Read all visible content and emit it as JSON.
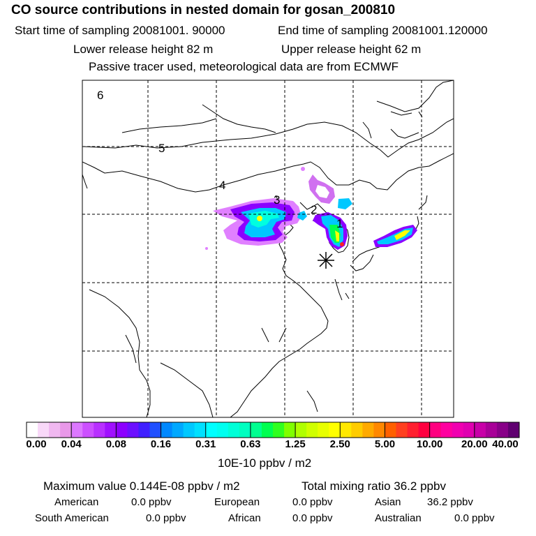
{
  "header": {
    "title": "CO  source contributions in nested domain for gosan_200810",
    "start_time": "Start time of sampling 20081001. 90000",
    "end_time": "End time of sampling 20081001.120000",
    "lower_height": "Lower release height   82 m",
    "upper_height": "Upper release height   62 m",
    "tracer_note": "Passive tracer used, meteorological data are from ECMWF"
  },
  "map": {
    "region_labels": [
      "6",
      "5",
      "4",
      "3",
      "2",
      "1"
    ],
    "receptor_marker": "star-marker",
    "plume_colors": [
      "#ff00ff",
      "#7d00ff",
      "#00c8ff",
      "#00ffe0",
      "#00ff50",
      "#ffff00",
      "#ff2020"
    ]
  },
  "colorbar": {
    "ticks": [
      "0.00",
      "0.04",
      "0.08",
      "0.16",
      "0.31",
      "0.63",
      "1.25",
      "2.50",
      "5.00",
      "10.00",
      "20.00",
      "40.00"
    ],
    "colors": [
      [
        "#ffffff",
        "#f8d8f8",
        "#f0b8f0",
        "#e898e8"
      ],
      [
        "#dc78ff",
        "#cc50ff",
        "#b830ff",
        "#a010ff"
      ],
      [
        "#8c00ff",
        "#6c10ff",
        "#4020ff",
        "#2050ff"
      ],
      [
        "#0088ff",
        "#00a8ff",
        "#00c8ff",
        "#00e0ff"
      ],
      [
        "#00ffff",
        "#00fff0",
        "#00ffd8",
        "#00ffc0"
      ],
      [
        "#00ff90",
        "#00ff50",
        "#30ff20",
        "#80ff00"
      ],
      [
        "#b0ff00",
        "#d0ff00",
        "#e8ff00",
        "#ffff00"
      ],
      [
        "#ffe800",
        "#ffcc00",
        "#ffaa00",
        "#ff8800"
      ],
      [
        "#ff6000",
        "#ff4020",
        "#ff2030",
        "#ff0040"
      ],
      [
        "#ff0080",
        "#ff00a0",
        "#f000b0",
        "#e000b0"
      ],
      [
        "#c800a8",
        "#a80098",
        "#880088",
        "#600070"
      ]
    ],
    "unit_label": "10E-10 ppbv / m2"
  },
  "summary": {
    "max_value": "Maximum value  0.144E-08 ppbv / m2",
    "total_mixing": "Total mixing ratio      36.2 ppbv",
    "regions": [
      {
        "name": "American",
        "value": "0.0 ppbv"
      },
      {
        "name": "European",
        "value": "0.0 ppbv"
      },
      {
        "name": "Asian",
        "value": "36.2 ppbv"
      },
      {
        "name": "South American",
        "value": "0.0 ppbv"
      },
      {
        "name": "African",
        "value": "0.0 ppbv"
      },
      {
        "name": "Australian",
        "value": "0.0 ppbv"
      }
    ]
  }
}
